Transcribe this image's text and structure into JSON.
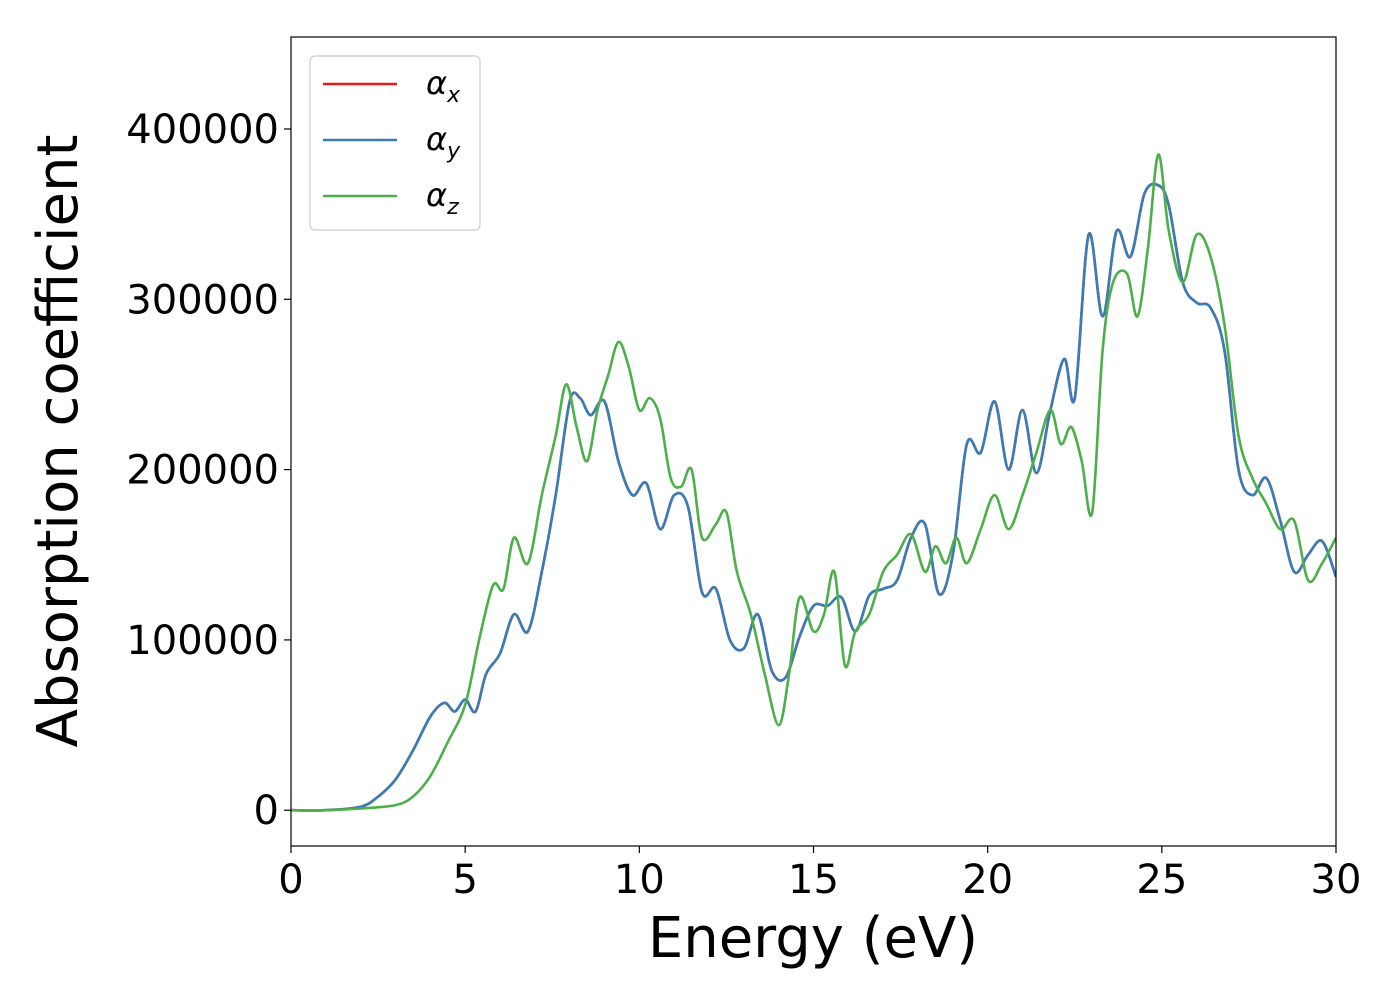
{
  "chart_data": {
    "type": "line",
    "xlabel": "Energy (eV)",
    "ylabel": "Absorption coefficient",
    "xlim": [
      0,
      30
    ],
    "ylim": [
      -21000,
      454000
    ],
    "x_ticks": [
      0,
      5,
      10,
      15,
      20,
      25,
      30
    ],
    "y_ticks": [
      0,
      100000,
      200000,
      300000,
      400000
    ],
    "legend_position": "top-left",
    "grid": false,
    "series": [
      {
        "name": "αx",
        "symbol": "α",
        "subscript": "x",
        "color": "#e41a1c",
        "x": [
          0,
          1,
          2,
          2.5,
          3,
          3.5,
          4,
          4.4,
          4.7,
          5,
          5.3,
          5.6,
          6,
          6.4,
          6.8,
          7.2,
          7.6,
          8,
          8.3,
          8.6,
          9,
          9.4,
          9.8,
          10.2,
          10.6,
          11,
          11.4,
          11.8,
          12.2,
          12.6,
          13,
          13.4,
          13.8,
          14.2,
          14.6,
          15,
          15.4,
          15.8,
          16.2,
          16.6,
          17,
          17.4,
          17.8,
          18.2,
          18.6,
          19,
          19.4,
          19.8,
          20.2,
          20.6,
          21,
          21.4,
          21.8,
          22.2,
          22.5,
          22.9,
          23.3,
          23.7,
          24.1,
          24.5,
          24.9,
          25.2,
          25.6,
          26,
          26.4,
          26.8,
          27.2,
          27.6,
          28,
          28.4,
          28.8,
          29.2,
          29.6,
          30
        ],
        "y": [
          0,
          0,
          2000,
          8000,
          18000,
          35000,
          55000,
          63000,
          58000,
          65000,
          58000,
          80000,
          92000,
          115000,
          105000,
          140000,
          185000,
          240000,
          242000,
          232000,
          240000,
          205000,
          185000,
          192000,
          165000,
          185000,
          178000,
          128000,
          130000,
          100000,
          95000,
          115000,
          82000,
          78000,
          102000,
          120000,
          120000,
          125000,
          105000,
          126000,
          130000,
          135000,
          160000,
          168000,
          127000,
          150000,
          215000,
          210000,
          240000,
          200000,
          235000,
          198000,
          235000,
          265000,
          242000,
          338000,
          290000,
          340000,
          325000,
          362000,
          367000,
          355000,
          310000,
          298000,
          295000,
          270000,
          200000,
          185000,
          195000,
          170000,
          140000,
          150000,
          158000,
          137000
        ]
      },
      {
        "name": "αy",
        "symbol": "α",
        "subscript": "y",
        "color": "#377eb8",
        "x": [
          0,
          1,
          2,
          2.5,
          3,
          3.5,
          4,
          4.4,
          4.7,
          5,
          5.3,
          5.6,
          6,
          6.4,
          6.8,
          7.2,
          7.6,
          8,
          8.3,
          8.6,
          9,
          9.4,
          9.8,
          10.2,
          10.6,
          11,
          11.4,
          11.8,
          12.2,
          12.6,
          13,
          13.4,
          13.8,
          14.2,
          14.6,
          15,
          15.4,
          15.8,
          16.2,
          16.6,
          17,
          17.4,
          17.8,
          18.2,
          18.6,
          19,
          19.4,
          19.8,
          20.2,
          20.6,
          21,
          21.4,
          21.8,
          22.2,
          22.5,
          22.9,
          23.3,
          23.7,
          24.1,
          24.5,
          24.9,
          25.2,
          25.6,
          26,
          26.4,
          26.8,
          27.2,
          27.6,
          28,
          28.4,
          28.8,
          29.2,
          29.6,
          30
        ],
        "y": [
          0,
          0,
          2000,
          8000,
          18000,
          35000,
          55000,
          63000,
          58000,
          65000,
          58000,
          80000,
          92000,
          115000,
          105000,
          140000,
          185000,
          240000,
          242000,
          232000,
          240000,
          205000,
          185000,
          192000,
          165000,
          185000,
          178000,
          128000,
          130000,
          100000,
          95000,
          115000,
          82000,
          78000,
          102000,
          120000,
          120000,
          125000,
          105000,
          126000,
          130000,
          135000,
          160000,
          168000,
          127000,
          150000,
          215000,
          210000,
          240000,
          200000,
          235000,
          198000,
          235000,
          265000,
          242000,
          338000,
          290000,
          340000,
          325000,
          362000,
          367000,
          355000,
          310000,
          298000,
          295000,
          270000,
          200000,
          185000,
          195000,
          170000,
          140000,
          150000,
          158000,
          137000
        ]
      },
      {
        "name": "αz",
        "symbol": "α",
        "subscript": "z",
        "color": "#4daf4a",
        "x": [
          0,
          1,
          2,
          3,
          3.5,
          4,
          4.5,
          5,
          5.4,
          5.8,
          6.1,
          6.4,
          6.8,
          7.2,
          7.6,
          7.9,
          8.2,
          8.5,
          8.8,
          9.1,
          9.4,
          9.7,
          10,
          10.3,
          10.6,
          10.9,
          11.2,
          11.5,
          11.8,
          12.2,
          12.5,
          12.8,
          13.2,
          13.6,
          14,
          14.3,
          14.6,
          15,
          15.3,
          15.6,
          15.9,
          16.2,
          16.6,
          17,
          17.4,
          17.8,
          18.2,
          18.5,
          18.8,
          19.1,
          19.4,
          19.8,
          20.2,
          20.6,
          21,
          21.4,
          21.8,
          22.1,
          22.4,
          22.7,
          23,
          23.3,
          23.6,
          24,
          24.3,
          24.6,
          24.9,
          25.2,
          25.6,
          26,
          26.4,
          26.8,
          27.2,
          27.6,
          28,
          28.4,
          28.8,
          29.2,
          29.6,
          30
        ],
        "y": [
          0,
          0,
          1000,
          3000,
          8000,
          20000,
          40000,
          62000,
          100000,
          132000,
          130000,
          160000,
          145000,
          185000,
          220000,
          250000,
          225000,
          205000,
          235000,
          255000,
          275000,
          260000,
          235000,
          242000,
          230000,
          195000,
          190000,
          200000,
          160000,
          168000,
          175000,
          140000,
          115000,
          80000,
          50000,
          80000,
          125000,
          105000,
          115000,
          140000,
          85000,
          105000,
          115000,
          140000,
          150000,
          162000,
          140000,
          155000,
          145000,
          160000,
          145000,
          165000,
          185000,
          165000,
          185000,
          210000,
          235000,
          215000,
          225000,
          205000,
          175000,
          270000,
          310000,
          315000,
          290000,
          330000,
          385000,
          340000,
          310000,
          338000,
          325000,
          285000,
          220000,
          195000,
          180000,
          165000,
          170000,
          135000,
          145000,
          160000
        ]
      }
    ]
  }
}
